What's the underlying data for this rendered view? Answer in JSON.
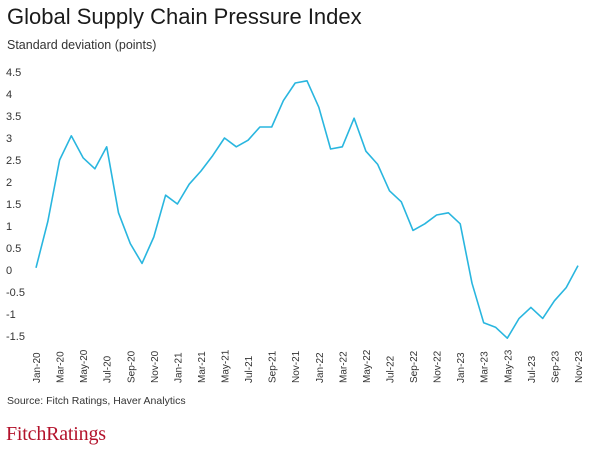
{
  "brand": {
    "logo_text": "FitchRatings",
    "color": "#b3122b"
  },
  "line_color": "#29b6df",
  "chart_data": {
    "type": "line",
    "title": "Global Supply Chain Pressure Index",
    "subtitle": "Standard deviation (points)",
    "source": "Source: Fitch Ratings, Haver Analytics",
    "xlabel": "",
    "ylabel": "Standard deviation (points)",
    "ylim": [
      -1.5,
      4.5
    ],
    "yticks": [
      4.5,
      4,
      3.5,
      3,
      2.5,
      2,
      1.5,
      1,
      0.5,
      0,
      -0.5,
      -1,
      -1.5
    ],
    "ytick_labels": [
      "4.5",
      "4",
      "3.5",
      "3",
      "2.5",
      "2",
      "1.5",
      "1",
      "0.5",
      "0",
      "-0.5",
      "-1",
      "-1.5"
    ],
    "grid": false,
    "x_tick_labels": [
      "Jan-20",
      "Mar-20",
      "May-20",
      "Jul-20",
      "Sep-20",
      "Nov-20",
      "Jan-21",
      "Mar-21",
      "May-21",
      "Jul-21",
      "Sep-21",
      "Nov-21",
      "Jan-22",
      "Mar-22",
      "May-22",
      "Jul-22",
      "Sep-22",
      "Nov-22",
      "Jan-23",
      "Mar-23",
      "May-23",
      "Jul-23",
      "Sep-23",
      "Nov-23"
    ],
    "x": [
      "Jan-20",
      "Feb-20",
      "Mar-20",
      "Apr-20",
      "May-20",
      "Jun-20",
      "Jul-20",
      "Aug-20",
      "Sep-20",
      "Oct-20",
      "Nov-20",
      "Dec-20",
      "Jan-21",
      "Feb-21",
      "Mar-21",
      "Apr-21",
      "May-21",
      "Jun-21",
      "Jul-21",
      "Aug-21",
      "Sep-21",
      "Oct-21",
      "Nov-21",
      "Dec-21",
      "Jan-22",
      "Feb-22",
      "Mar-22",
      "Apr-22",
      "May-22",
      "Jun-22",
      "Jul-22",
      "Aug-22",
      "Sep-22",
      "Oct-22",
      "Nov-22",
      "Dec-22",
      "Jan-23",
      "Feb-23",
      "Mar-23",
      "Apr-23",
      "May-23",
      "Jun-23",
      "Jul-23",
      "Aug-23",
      "Sep-23",
      "Oct-23",
      "Nov-23"
    ],
    "series": [
      {
        "values": [
          0.05,
          1.1,
          2.5,
          3.05,
          2.55,
          2.3,
          2.8,
          1.3,
          0.6,
          0.15,
          0.75,
          1.7,
          1.5,
          1.95,
          2.25,
          2.6,
          3.0,
          2.8,
          2.95,
          3.25,
          3.25,
          3.85,
          4.25,
          4.3,
          3.7,
          2.75,
          2.8,
          3.45,
          2.7,
          2.4,
          1.8,
          1.55,
          0.9,
          1.05,
          1.25,
          1.3,
          1.05,
          -0.3,
          -1.2,
          -1.3,
          -1.55,
          -1.1,
          -0.85,
          -1.1,
          -0.7,
          -0.4,
          0.1
        ]
      }
    ]
  }
}
